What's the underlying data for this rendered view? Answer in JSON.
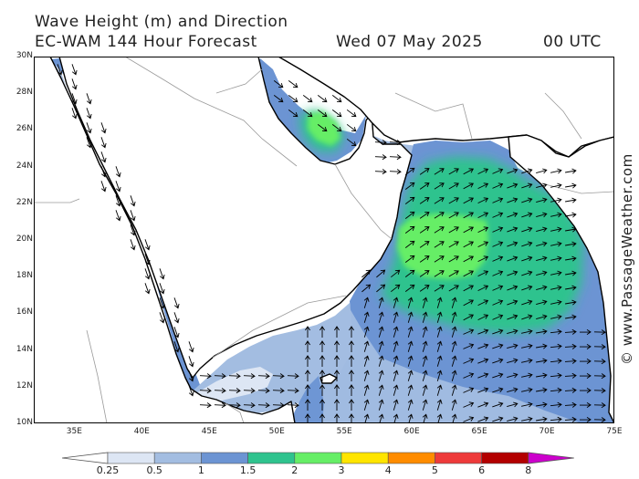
{
  "header": {
    "line1": "Wave Height (m) and Direction",
    "line2": "EC-WAM 144 Hour Forecast",
    "date": "Wed 07 May 2025",
    "time": "00 UTC"
  },
  "credit": "© www.PassageWeather.com",
  "map": {
    "region": "Red Sea, Gulf of Aden, Persian Gulf and Arabian Sea",
    "lon_range": [
      32,
      75
    ],
    "lat_range": [
      10,
      30
    ],
    "lat_ticks": [
      "30N",
      "28N",
      "26N",
      "24N",
      "22N",
      "20N",
      "18N",
      "16N",
      "14N",
      "12N",
      "10N"
    ],
    "lon_ticks": [
      "35E",
      "40E",
      "45E",
      "50E",
      "55E",
      "60E",
      "65E",
      "70E",
      "75E"
    ],
    "land_color": "#ffffff",
    "coast_color": "#000000",
    "border_color": "#9a9a9a",
    "max_wave_m": 3.3,
    "dominant_direction": "northeast",
    "arrow_color": "#000000"
  },
  "legend": {
    "colors": [
      "#ffffff",
      "#dde6f4",
      "#a3bde1",
      "#6c94d3",
      "#2fc38e",
      "#66ee66",
      "#ffe500",
      "#ff8c00",
      "#ee3a3a",
      "#b30000",
      "#cc00cc"
    ],
    "ticks": [
      "0.25",
      "0.5",
      "1",
      "1.5",
      "2",
      "3",
      "4",
      "5",
      "6",
      "8"
    ]
  }
}
